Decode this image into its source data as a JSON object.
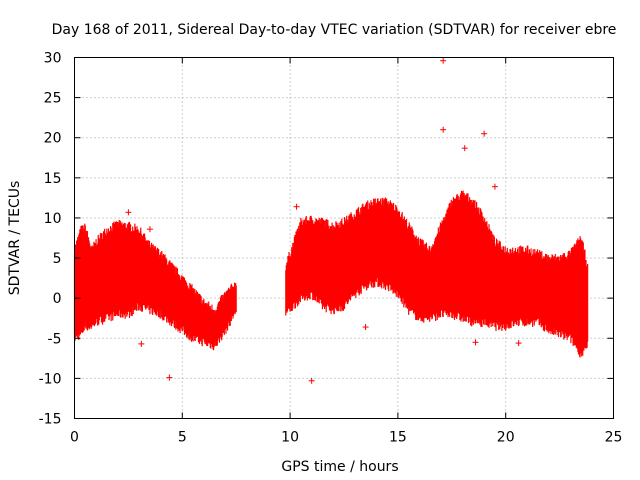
{
  "chart_data": {
    "type": "scatter",
    "title": "Day 168 of 2011, Sidereal Day-to-day VTEC variation (SDTVAR) for receiver ebre",
    "xlabel": "GPS time / hours",
    "ylabel": "SDTVAR / TECUs",
    "xlim": [
      0,
      25
    ],
    "ylim": [
      -15,
      30
    ],
    "xticks": [
      0,
      5,
      10,
      15,
      20,
      25
    ],
    "yticks": [
      -15,
      -10,
      -5,
      0,
      5,
      10,
      15,
      20,
      25,
      30
    ],
    "grid": true,
    "marker": "+",
    "color": "#ff0000",
    "series": [
      {
        "name": "SDTVAR",
        "envelope": {
          "x": [
            0.0,
            0.3,
            0.5,
            0.8,
            1.0,
            1.5,
            2.0,
            2.5,
            3.0,
            3.5,
            4.0,
            4.5,
            5.0,
            5.5,
            6.0,
            6.5,
            7.0,
            7.5
          ],
          "upper": [
            6.0,
            8.5,
            8.8,
            6.0,
            7.0,
            8.5,
            9.2,
            9.0,
            8.5,
            6.5,
            5.5,
            4.0,
            2.5,
            1.0,
            -0.5,
            -1.5,
            0.5,
            1.8
          ],
          "lower": [
            -5.0,
            -4.5,
            -3.5,
            -3.5,
            -3.0,
            -2.5,
            -2.0,
            -2.0,
            -1.0,
            -1.5,
            -2.0,
            -3.0,
            -4.0,
            -5.0,
            -5.5,
            -6.0,
            -4.0,
            -1.5
          ]
        },
        "envelope2": {
          "x": [
            9.8,
            10.5,
            11.0,
            11.5,
            12.0,
            12.5,
            13.0,
            13.5,
            14.0,
            14.5,
            15.0,
            15.5,
            16.0,
            16.5,
            17.0,
            17.5,
            18.0,
            18.5,
            19.0,
            19.5,
            20.0,
            20.5,
            21.0,
            21.5,
            22.0,
            22.5,
            23.0,
            23.5,
            23.8
          ],
          "upper": [
            4.0,
            9.5,
            9.8,
            9.5,
            9.0,
            9.5,
            10.5,
            11.5,
            12.0,
            12.0,
            11.0,
            9.0,
            7.0,
            6.0,
            9.0,
            12.0,
            13.0,
            12.0,
            10.0,
            7.0,
            6.0,
            6.0,
            6.0,
            5.5,
            5.0,
            5.0,
            5.5,
            7.5,
            4.0
          ],
          "lower": [
            -2.0,
            0.0,
            0.5,
            -1.0,
            -1.5,
            -1.0,
            0.5,
            1.5,
            2.0,
            1.5,
            0.5,
            -1.5,
            -2.5,
            -2.5,
            -2.0,
            -2.0,
            -2.5,
            -3.0,
            -3.0,
            -3.5,
            -3.5,
            -3.0,
            -3.0,
            -3.0,
            -4.0,
            -4.5,
            -5.0,
            -7.0,
            -6.0
          ]
        },
        "outliers": [
          {
            "x": 2.5,
            "y": 10.7
          },
          {
            "x": 3.1,
            "y": -5.7
          },
          {
            "x": 3.5,
            "y": 8.6
          },
          {
            "x": 4.4,
            "y": -9.9
          },
          {
            "x": 10.3,
            "y": 11.4
          },
          {
            "x": 11.0,
            "y": -10.3
          },
          {
            "x": 13.5,
            "y": -3.6
          },
          {
            "x": 17.1,
            "y": 29.6
          },
          {
            "x": 17.1,
            "y": 21.0
          },
          {
            "x": 18.1,
            "y": 18.7
          },
          {
            "x": 19.0,
            "y": 20.5
          },
          {
            "x": 19.5,
            "y": 13.9
          },
          {
            "x": 20.6,
            "y": -5.6
          },
          {
            "x": 18.6,
            "y": -5.5
          }
        ]
      }
    ]
  }
}
